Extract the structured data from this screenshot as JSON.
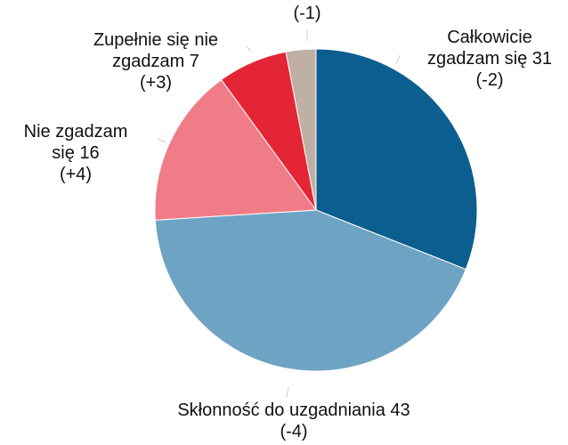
{
  "chart_data": {
    "type": "pie",
    "categories": [
      [
        "Całkowicie",
        "zgadzam się"
      ],
      [
        "Skłonność do uzgadniania"
      ],
      [
        "Nie zgadzam",
        "się"
      ],
      [
        "Zupełnie się nie",
        "zgadzam"
      ],
      null
    ],
    "values": [
      31,
      43,
      16,
      7,
      3
    ],
    "changes": [
      "(-2)",
      "(-4)",
      "(+4)",
      "(+3)",
      "(-1)"
    ],
    "colors": [
      "#0b5e8f",
      "#6fa3c4",
      "#f07c88",
      "#e42536",
      "#c0afa4"
    ]
  }
}
